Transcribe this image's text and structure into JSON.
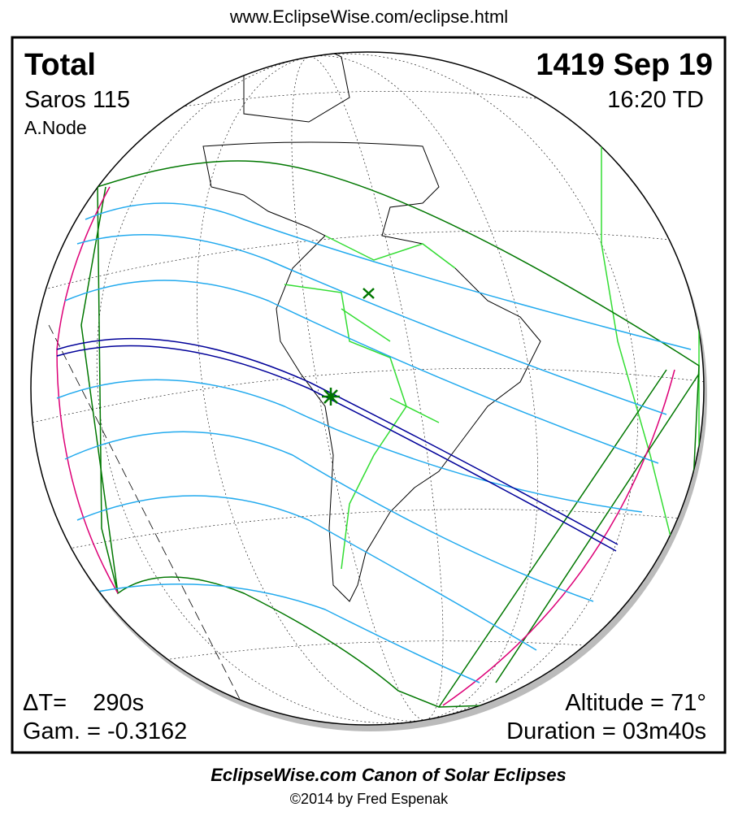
{
  "header": {
    "url": "www.EclipseWise.com/eclipse.html"
  },
  "map": {
    "type_label": "Total",
    "date": "1419 Sep 19",
    "saros": "Saros 115",
    "time": "16:20 TD",
    "node": "A.Node",
    "delta_t": "ΔT=    290s",
    "gamma": "Gam. = -0.3162",
    "altitude": "Altitude = 71°",
    "duration": "Duration = 03m40s"
  },
  "footer": {
    "title": "EclipseWise.com Canon of Solar Eclipses",
    "credit": "©2014 by Fred Espenak"
  }
}
